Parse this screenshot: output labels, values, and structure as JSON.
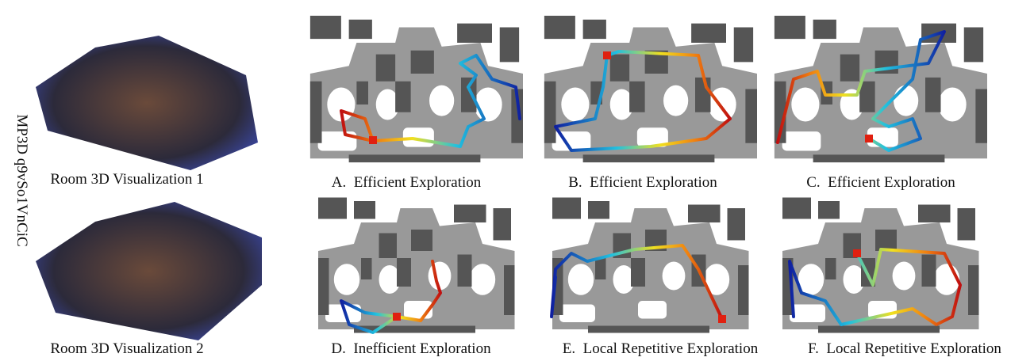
{
  "side_label": "MP3D q9vSo1VnCiC",
  "rooms": [
    {
      "caption": "Room 3D Visualization 1"
    },
    {
      "caption": "Room 3D Visualization 2"
    }
  ],
  "panels": [
    {
      "caption": "A.  Efficient Exploration"
    },
    {
      "caption": "B.  Efficient Exploration"
    },
    {
      "caption": "C.  Efficient Exploration"
    },
    {
      "caption": "D.  Inefficient Exploration"
    },
    {
      "caption": "E.  Local Repetitive Exploration"
    },
    {
      "caption": "F.  Local Repetitive Exploration"
    }
  ]
}
